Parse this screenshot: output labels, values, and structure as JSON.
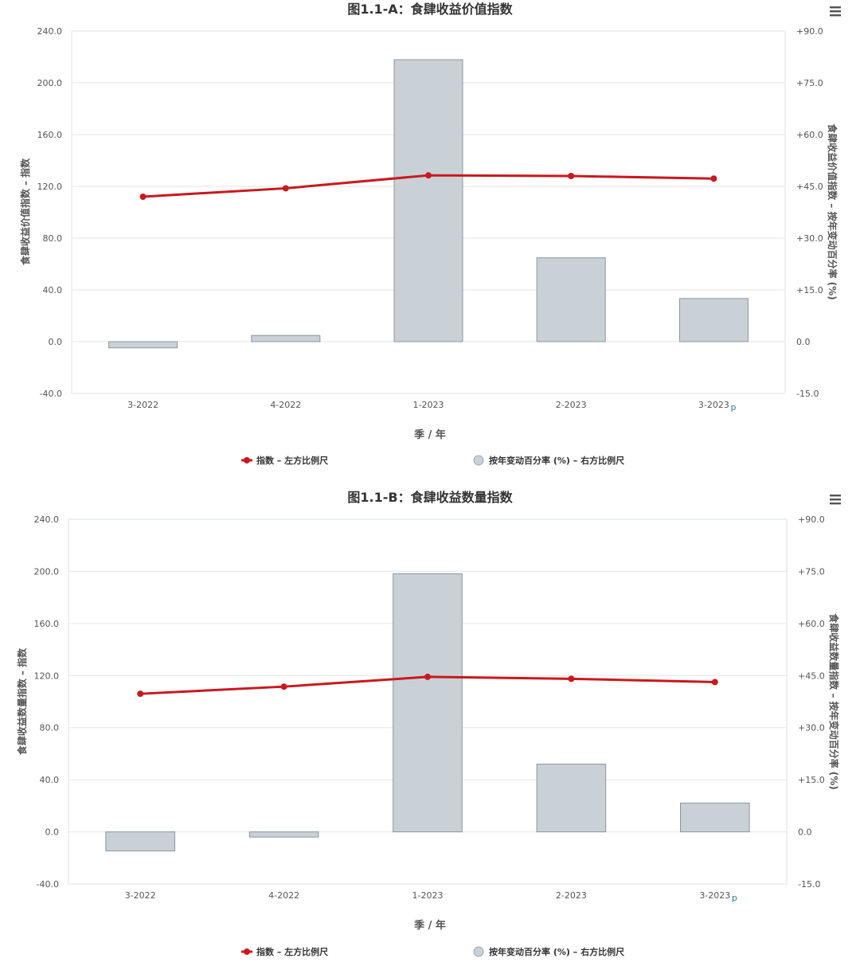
{
  "chart_data": [
    {
      "type": "bar",
      "title": "图1.1-A：食肆收益价值指数",
      "xlabel": "季 / 年",
      "ylabel_left": "食肆收益价值指数 – 指数",
      "ylabel_right": "食肆收益价值指数 – 按年变动百分率 (%)",
      "categories": [
        "3-2022",
        "4-2022",
        "1-2023",
        "2-2023",
        "3-2023"
      ],
      "provisional_marker": "p",
      "left_axis": {
        "ylim": [
          -40,
          240
        ],
        "ticks": [
          "240.0",
          "200.0",
          "160.0",
          "120.0",
          "80.0",
          "40.0",
          "0.0",
          "-40.0"
        ]
      },
      "right_axis": {
        "ylim": [
          -15,
          90
        ],
        "ticks": [
          "+90.0",
          "+75.0",
          "+60.0",
          "+45.0",
          "+30.0",
          "+15.0",
          "0.0",
          "-15.0"
        ]
      },
      "series": [
        {
          "name": "指数 – 左方比例尺",
          "kind": "line",
          "axis": "left",
          "color": "#c8191e",
          "values": [
            112.0,
            118.5,
            128.5,
            128.0,
            126.0
          ]
        },
        {
          "name": "按年变动百分率 (%) – 右方比例尺",
          "kind": "bar",
          "axis": "right",
          "color": "#c9d1d7",
          "values": [
            -1.8,
            1.8,
            81.7,
            24.3,
            12.5
          ]
        }
      ],
      "grid": true,
      "legend": "bottom-center"
    },
    {
      "type": "bar",
      "title": "图1.1-B：食肆收益数量指数",
      "xlabel": "季 / 年",
      "ylabel_left": "食肆收益数量指数 – 指数",
      "ylabel_right": "食肆收益数量指数 – 按年变动百分率 (%)",
      "categories": [
        "3-2022",
        "4-2022",
        "1-2023",
        "2-2023",
        "3-2023"
      ],
      "provisional_marker": "p",
      "left_axis": {
        "ylim": [
          -40,
          240
        ],
        "ticks": [
          "240.0",
          "200.0",
          "160.0",
          "120.0",
          "80.0",
          "40.0",
          "0.0",
          "-40.0"
        ]
      },
      "right_axis": {
        "ylim": [
          -15,
          90
        ],
        "ticks": [
          "+90.0",
          "+75.0",
          "+60.0",
          "+45.0",
          "+30.0",
          "+15.0",
          "0.0",
          "-15.0"
        ]
      },
      "series": [
        {
          "name": "指数 – 左方比例尺",
          "kind": "line",
          "axis": "left",
          "color": "#c8191e",
          "values": [
            106.0,
            111.5,
            119.0,
            117.5,
            115.0
          ]
        },
        {
          "name": "按年变动百分率 (%) – 右方比例尺",
          "kind": "bar",
          "axis": "right",
          "color": "#c9d1d7",
          "values": [
            -5.5,
            -1.5,
            74.3,
            19.5,
            8.3
          ]
        }
      ],
      "grid": true,
      "legend": "bottom-center"
    }
  ],
  "colors": {
    "line": "#c8191e",
    "bar_fill": "#c9d1d7",
    "bar_stroke": "#8c969e",
    "grid": "#e6e6e6",
    "axis_text": "#555555",
    "title": "#333333",
    "provisional": "#2a7a8c"
  },
  "icons": {
    "menu": "hamburger-menu-icon"
  }
}
